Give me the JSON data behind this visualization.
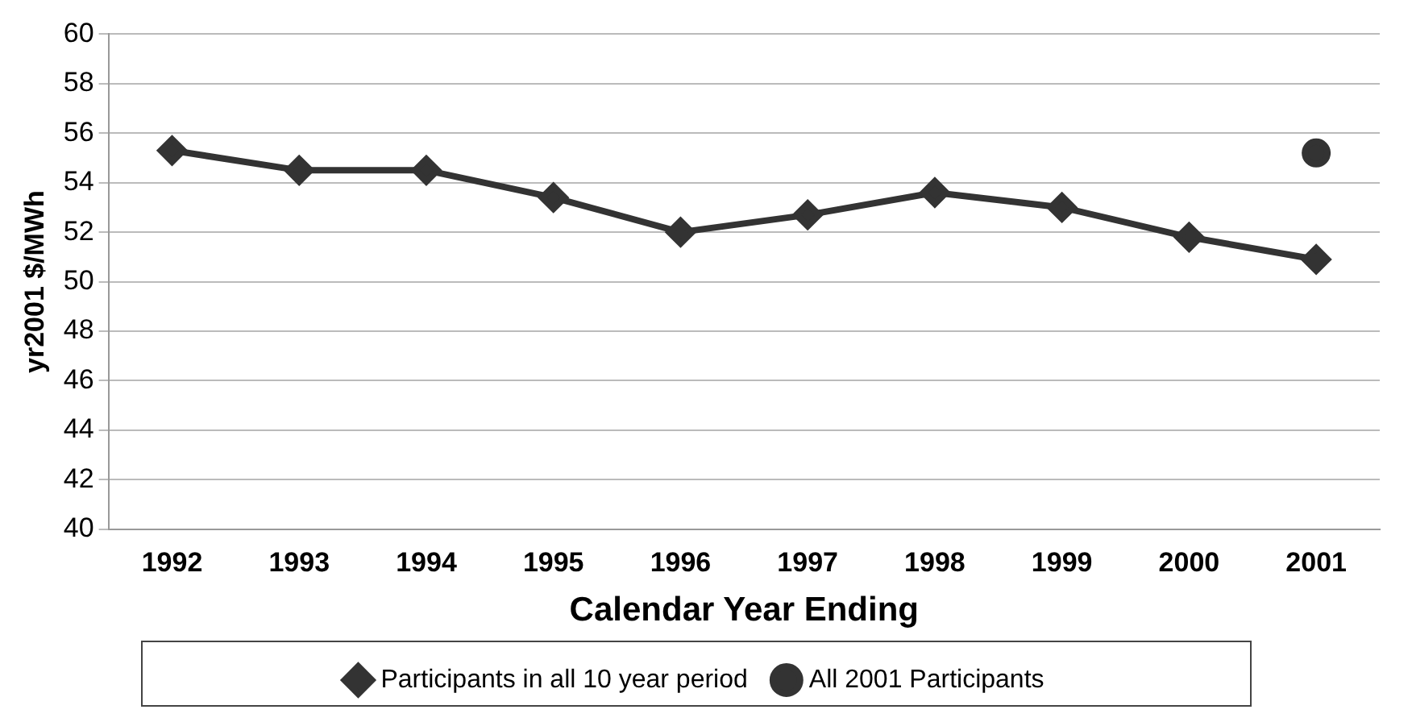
{
  "chart_data": {
    "type": "line",
    "xlabel": "Calendar Year Ending",
    "ylabel": "yr2001 $/MWh",
    "categories": [
      "1992",
      "1993",
      "1994",
      "1995",
      "1996",
      "1997",
      "1998",
      "1999",
      "2000",
      "2001"
    ],
    "series": [
      {
        "name": "Participants in all 10 year period",
        "color": "#333333",
        "marker": "diamond",
        "values": [
          55.3,
          54.5,
          54.5,
          53.4,
          52.0,
          52.7,
          53.6,
          53.0,
          51.8,
          50.9
        ]
      },
      {
        "name": "All 2001 Participants",
        "color": "#333333",
        "marker": "circle",
        "values": [
          null,
          null,
          null,
          null,
          null,
          null,
          null,
          null,
          null,
          55.2
        ]
      }
    ],
    "ylim": [
      40,
      60
    ],
    "yticks": [
      40,
      42,
      44,
      46,
      48,
      50,
      52,
      54,
      56,
      58,
      60
    ],
    "grid": "y",
    "legend": "bottom",
    "line_style": "solid"
  }
}
